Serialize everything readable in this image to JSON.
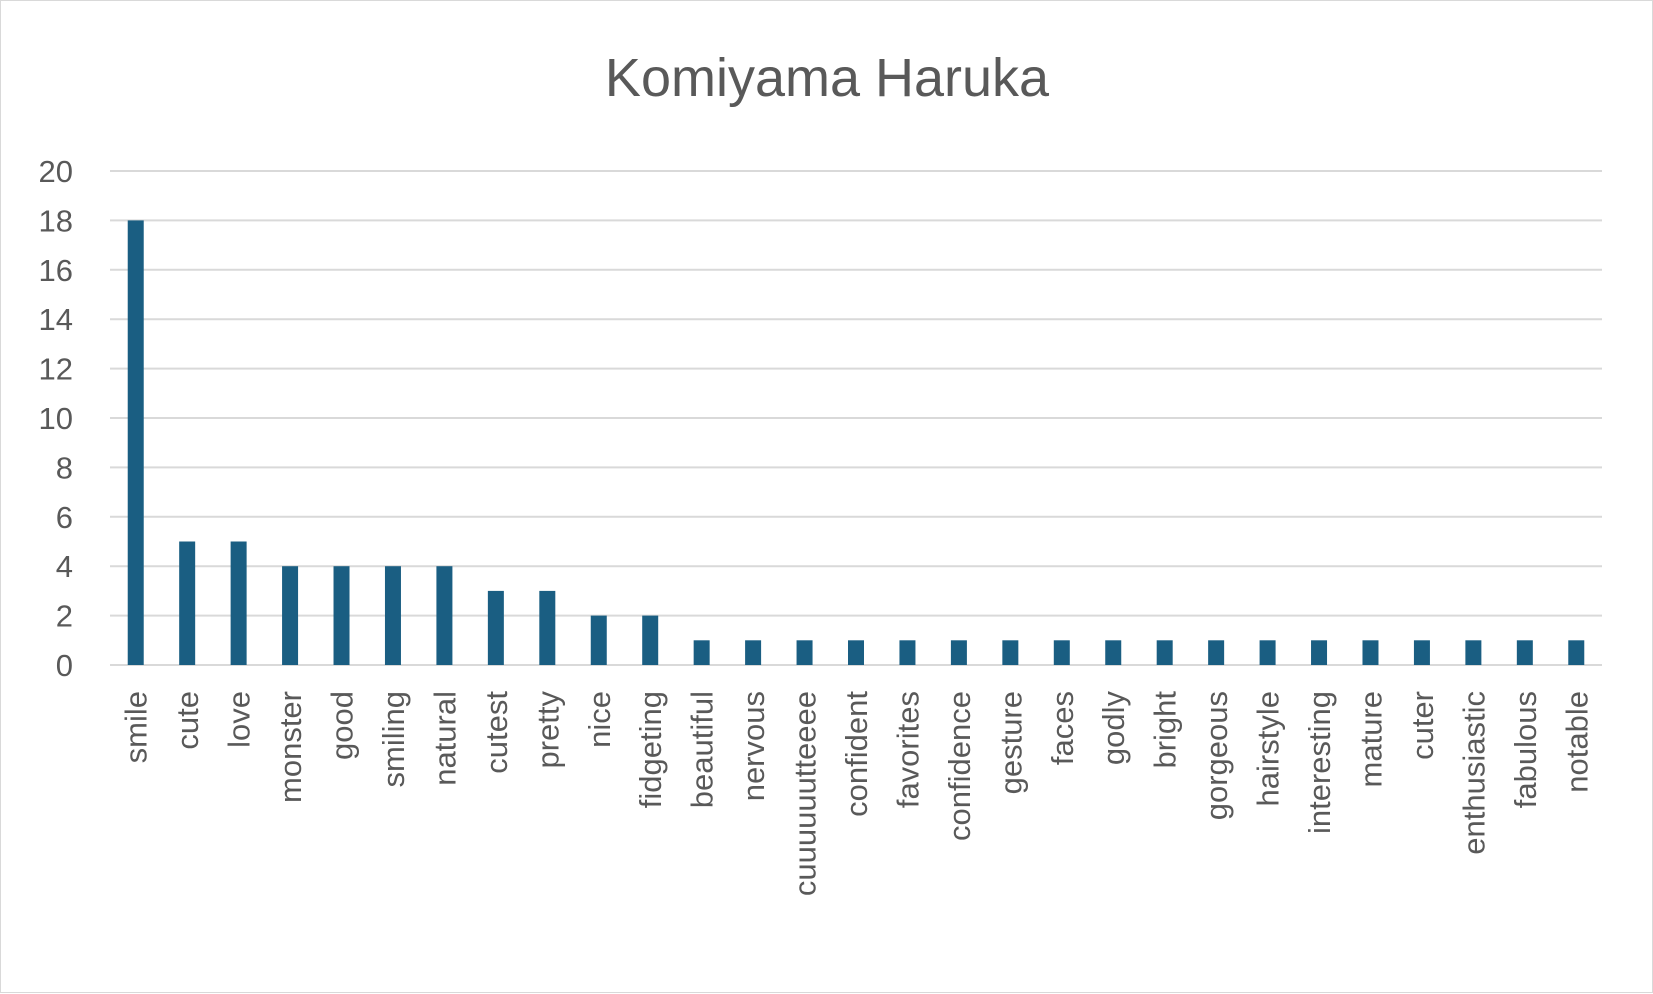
{
  "chart_data": {
    "type": "bar",
    "title": "Komiyama Haruka",
    "xlabel": "",
    "ylabel": "",
    "ylim": [
      0,
      20
    ],
    "y_ticks": [
      "0",
      "2",
      "4",
      "6",
      "8",
      "10",
      "12",
      "14",
      "16",
      "18",
      "20"
    ],
    "grid": true,
    "legend": "none",
    "bar_color": "#1a5e82",
    "categories": [
      "smile",
      "cute",
      "love",
      "monster",
      "good",
      "smiling",
      "natural",
      "cutest",
      "pretty",
      "nice",
      "fidgeting",
      "beautiful",
      "nervous",
      "cuuuuuutteeee",
      "confident",
      "favorites",
      "confidence",
      "gesture",
      "faces",
      "godly",
      "bright",
      "gorgeous",
      "hairstyle",
      "interesting",
      "mature",
      "cuter",
      "enthusiastic",
      "fabulous",
      "notable"
    ],
    "values": [
      18,
      5,
      5,
      4,
      4,
      4,
      4,
      3,
      3,
      2,
      2,
      1,
      1,
      1,
      1,
      1,
      1,
      1,
      1,
      1,
      1,
      1,
      1,
      1,
      1,
      1,
      1,
      1,
      1
    ]
  }
}
